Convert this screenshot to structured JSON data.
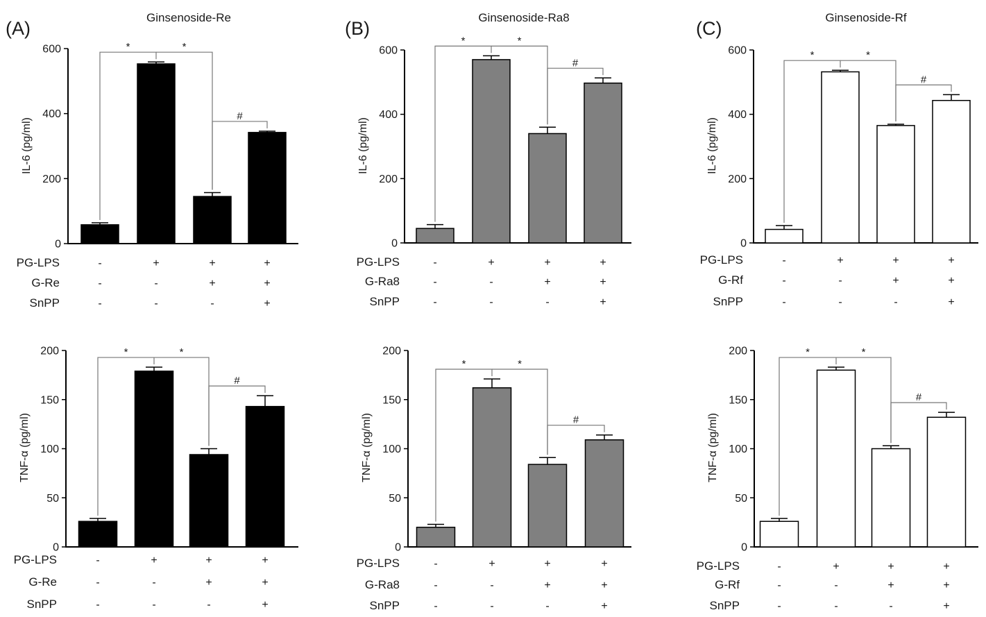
{
  "panels": [
    {
      "letter": "(A)",
      "title": "Ginsenoside-Re",
      "bar_color": "#000000"
    },
    {
      "letter": "(B)",
      "title": "Ginsenoside-Ra8",
      "bar_color": "#808080"
    },
    {
      "letter": "(C)",
      "title": "Ginsenoside-Rf",
      "bar_color": "#ffffff"
    }
  ],
  "chart_data": [
    {
      "type": "bar",
      "panel": "(A)",
      "ylabel": "IL-6 (pg/ml)",
      "ylim": [
        0,
        600
      ],
      "yticks": [
        0,
        200,
        400,
        600
      ],
      "values": [
        58,
        553,
        145,
        342
      ],
      "errors": [
        6,
        6,
        12,
        4
      ],
      "significance": [
        {
          "between": [
            0,
            1
          ],
          "label": "*"
        },
        {
          "between": [
            1,
            2
          ],
          "label": "*"
        },
        {
          "between": [
            2,
            3
          ],
          "label": "#"
        }
      ],
      "conditions": [
        {
          "label": "PG-LPS",
          "signs": [
            "-",
            "+",
            "+",
            "+"
          ]
        },
        {
          "label": "G-Re",
          "signs": [
            "-",
            "-",
            "+",
            "+"
          ]
        },
        {
          "label": "SnPP",
          "signs": [
            "-",
            "-",
            "-",
            "+"
          ]
        }
      ]
    },
    {
      "type": "bar",
      "panel": "(B)",
      "ylabel": "IL-6 (pg/ml)",
      "ylim": [
        0,
        600
      ],
      "yticks": [
        0,
        200,
        400,
        600
      ],
      "values": [
        45,
        570,
        340,
        497
      ],
      "errors": [
        12,
        12,
        20,
        16
      ],
      "significance": [
        {
          "between": [
            0,
            1
          ],
          "label": "*"
        },
        {
          "between": [
            1,
            2
          ],
          "label": "*"
        },
        {
          "between": [
            2,
            3
          ],
          "label": "#"
        }
      ],
      "conditions": [
        {
          "label": "PG-LPS",
          "signs": [
            "-",
            "+",
            "+",
            "+"
          ]
        },
        {
          "label": "G-Ra8",
          "signs": [
            "-",
            "-",
            "+",
            "+"
          ]
        },
        {
          "label": "SnPP",
          "signs": [
            "-",
            "-",
            "-",
            "+"
          ]
        }
      ]
    },
    {
      "type": "bar",
      "panel": "(C)",
      "ylabel": "IL-6 (pg/ml)",
      "ylim": [
        0,
        600
      ],
      "yticks": [
        0,
        200,
        400,
        600
      ],
      "values": [
        42,
        532,
        365,
        443
      ],
      "errors": [
        12,
        5,
        4,
        18
      ],
      "significance": [
        {
          "between": [
            0,
            1
          ],
          "label": "*"
        },
        {
          "between": [
            1,
            2
          ],
          "label": "*"
        },
        {
          "between": [
            2,
            3
          ],
          "label": "#"
        }
      ],
      "conditions": [
        {
          "label": "PG-LPS",
          "signs": [
            "-",
            "+",
            "+",
            "+"
          ]
        },
        {
          "label": "G-Rf",
          "signs": [
            "-",
            "-",
            "+",
            "+"
          ]
        },
        {
          "label": "SnPP",
          "signs": [
            "-",
            "-",
            "-",
            "+"
          ]
        }
      ]
    },
    {
      "type": "bar",
      "panel": "(A)",
      "ylabel": "TNF-α (pg/ml)",
      "ylim": [
        0,
        200
      ],
      "yticks": [
        0,
        50,
        100,
        150,
        200
      ],
      "values": [
        26,
        179,
        94,
        143
      ],
      "errors": [
        3,
        4,
        6,
        11
      ],
      "significance": [
        {
          "between": [
            0,
            1
          ],
          "label": "*"
        },
        {
          "between": [
            1,
            2
          ],
          "label": "*"
        },
        {
          "between": [
            2,
            3
          ],
          "label": "#"
        }
      ],
      "conditions": [
        {
          "label": "PG-LPS",
          "signs": [
            "-",
            "+",
            "+",
            "+"
          ]
        },
        {
          "label": "G-Re",
          "signs": [
            "-",
            "-",
            "+",
            "+"
          ]
        },
        {
          "label": "SnPP",
          "signs": [
            "-",
            "-",
            "-",
            "+"
          ]
        }
      ]
    },
    {
      "type": "bar",
      "panel": "(B)",
      "ylabel": "TNF-α (pg/ml)",
      "ylim": [
        0,
        200
      ],
      "yticks": [
        0,
        50,
        100,
        150,
        200
      ],
      "values": [
        20,
        162,
        84,
        109
      ],
      "errors": [
        3,
        9,
        7,
        5
      ],
      "significance": [
        {
          "between": [
            0,
            1
          ],
          "label": "*"
        },
        {
          "between": [
            1,
            2
          ],
          "label": "*"
        },
        {
          "between": [
            2,
            3
          ],
          "label": "#"
        }
      ],
      "conditions": [
        {
          "label": "PG-LPS",
          "signs": [
            "-",
            "+",
            "+",
            "+"
          ]
        },
        {
          "label": "G-Ra8",
          "signs": [
            "-",
            "-",
            "+",
            "+"
          ]
        },
        {
          "label": "SnPP",
          "signs": [
            "-",
            "-",
            "-",
            "+"
          ]
        }
      ]
    },
    {
      "type": "bar",
      "panel": "(C)",
      "ylabel": "TNF-α (pg/ml)",
      "ylim": [
        0,
        200
      ],
      "yticks": [
        0,
        50,
        100,
        150,
        200
      ],
      "values": [
        26,
        180,
        100,
        132
      ],
      "errors": [
        3,
        3,
        3,
        5
      ],
      "significance": [
        {
          "between": [
            0,
            1
          ],
          "label": "*"
        },
        {
          "between": [
            1,
            2
          ],
          "label": "*"
        },
        {
          "between": [
            2,
            3
          ],
          "label": "#"
        }
      ],
      "conditions": [
        {
          "label": "PG-LPS",
          "signs": [
            "-",
            "+",
            "+",
            "+"
          ]
        },
        {
          "label": "G-Rf",
          "signs": [
            "-",
            "-",
            "+",
            "+"
          ]
        },
        {
          "label": "SnPP",
          "signs": [
            "-",
            "-",
            "-",
            "+"
          ]
        }
      ]
    }
  ]
}
